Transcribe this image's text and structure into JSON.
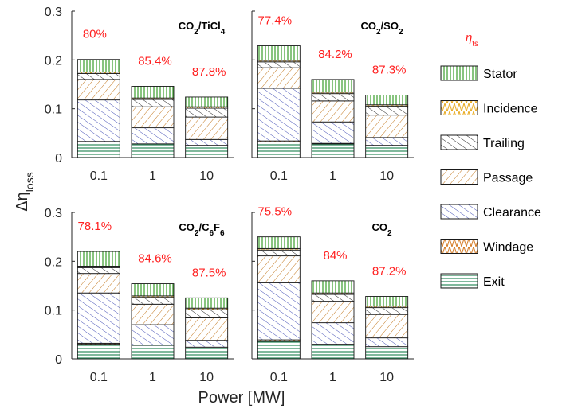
{
  "chart_data": {
    "type": "bar",
    "stacked": true,
    "xlabel": "Power [MW]",
    "ylabel_symbol": "Δη",
    "ylabel_sub": "loss",
    "ylim": [
      0,
      0.3
    ],
    "yticks": [
      "0",
      "0.1",
      "0.2",
      "0.3"
    ],
    "categories": [
      "0.1",
      "1",
      "10"
    ],
    "legend": {
      "title_symbol": "η",
      "title_sub": "ts",
      "placement": "right"
    },
    "components": [
      {
        "name": "Stator",
        "color": "#3a9d2a",
        "fill": "#ffffff",
        "pattern": "vert"
      },
      {
        "name": "Incidence",
        "color": "#e8a91c",
        "fill": "#ffffff",
        "pattern": "zigzag"
      },
      {
        "name": "Trailing",
        "color": "#2a2a2a",
        "fill": "#ffffff",
        "pattern": "diag"
      },
      {
        "name": "Passage",
        "color": "#c47a22",
        "fill": "#ffffff",
        "pattern": "back"
      },
      {
        "name": "Clearance",
        "color": "#4a55b8",
        "fill": "#ffffff",
        "pattern": "diag"
      },
      {
        "name": "Windage",
        "color": "#d4761c",
        "fill": "#ffffff",
        "pattern": "zigzag"
      },
      {
        "name": "Exit",
        "color": "#2a8a5a",
        "fill": "#ffffff",
        "pattern": "horiz"
      }
    ],
    "panels": [
      {
        "title_parts": [
          "CO",
          "2",
          "/TiCl",
          "4"
        ],
        "efficiencies": [
          "80%",
          "85.4%",
          "87.8%"
        ],
        "stack_order": [
          "Exit",
          "Windage",
          "Clearance",
          "Passage",
          "Trailing",
          "Incidence",
          "Stator"
        ],
        "series": [
          {
            "name": "Exit",
            "values": [
              0.032,
              0.028,
              0.025
            ]
          },
          {
            "name": "Windage",
            "values": [
              0.001,
              0.0,
              0.0
            ]
          },
          {
            "name": "Clearance",
            "values": [
              0.085,
              0.033,
              0.012
            ]
          },
          {
            "name": "Passage",
            "values": [
              0.042,
              0.043,
              0.046
            ]
          },
          {
            "name": "Trailing",
            "values": [
              0.012,
              0.015,
              0.018
            ]
          },
          {
            "name": "Incidence",
            "values": [
              0.003,
              0.003,
              0.003
            ]
          },
          {
            "name": "Stator",
            "values": [
              0.026,
              0.024,
              0.02
            ]
          }
        ]
      },
      {
        "title_parts": [
          "CO",
          "2",
          "/SO",
          "2"
        ],
        "efficiencies": [
          "77.4%",
          "84.2%",
          "87.3%"
        ],
        "stack_order": [
          "Exit",
          "Windage",
          "Clearance",
          "Passage",
          "Trailing",
          "Incidence",
          "Stator"
        ],
        "series": [
          {
            "name": "Exit",
            "values": [
              0.032,
              0.028,
              0.025
            ]
          },
          {
            "name": "Windage",
            "values": [
              0.002,
              0.001,
              0.0
            ]
          },
          {
            "name": "Clearance",
            "values": [
              0.108,
              0.044,
              0.016
            ]
          },
          {
            "name": "Passage",
            "values": [
              0.042,
              0.043,
              0.046
            ]
          },
          {
            "name": "Trailing",
            "values": [
              0.012,
              0.015,
              0.018
            ]
          },
          {
            "name": "Incidence",
            "values": [
              0.003,
              0.003,
              0.003
            ]
          },
          {
            "name": "Stator",
            "values": [
              0.03,
              0.026,
              0.02
            ]
          }
        ]
      },
      {
        "title_parts": [
          "CO",
          "2",
          "/C",
          "6",
          "F",
          "6"
        ],
        "efficiencies": [
          "78.1%",
          "84.6%",
          "87.5%"
        ],
        "stack_order": [
          "Exit",
          "Windage",
          "Clearance",
          "Passage",
          "Trailing",
          "Incidence",
          "Stator"
        ],
        "series": [
          {
            "name": "Exit",
            "values": [
              0.03,
              0.028,
              0.024
            ]
          },
          {
            "name": "Windage",
            "values": [
              0.002,
              0.0,
              0.0
            ]
          },
          {
            "name": "Clearance",
            "values": [
              0.103,
              0.042,
              0.014
            ]
          },
          {
            "name": "Passage",
            "values": [
              0.04,
              0.042,
              0.046
            ]
          },
          {
            "name": "Trailing",
            "values": [
              0.012,
              0.014,
              0.017
            ]
          },
          {
            "name": "Incidence",
            "values": [
              0.003,
              0.003,
              0.003
            ]
          },
          {
            "name": "Stator",
            "values": [
              0.03,
              0.025,
              0.021
            ]
          }
        ]
      },
      {
        "title_parts": [
          "CO",
          "2"
        ],
        "efficiencies": [
          "75.5%",
          "84%",
          "87.2%"
        ],
        "stack_order": [
          "Exit",
          "Windage",
          "Clearance",
          "Passage",
          "Trailing",
          "Incidence",
          "Stator"
        ],
        "series": [
          {
            "name": "Exit",
            "values": [
              0.036,
              0.029,
              0.025
            ]
          },
          {
            "name": "Windage",
            "values": [
              0.003,
              0.001,
              0.0
            ]
          },
          {
            "name": "Clearance",
            "values": [
              0.117,
              0.044,
              0.018
            ]
          },
          {
            "name": "Passage",
            "values": [
              0.055,
              0.044,
              0.048
            ]
          },
          {
            "name": "Trailing",
            "values": [
              0.012,
              0.014,
              0.014
            ]
          },
          {
            "name": "Incidence",
            "values": [
              0.003,
              0.003,
              0.003
            ]
          },
          {
            "name": "Stator",
            "values": [
              0.024,
              0.025,
              0.02
            ]
          }
        ]
      }
    ]
  }
}
